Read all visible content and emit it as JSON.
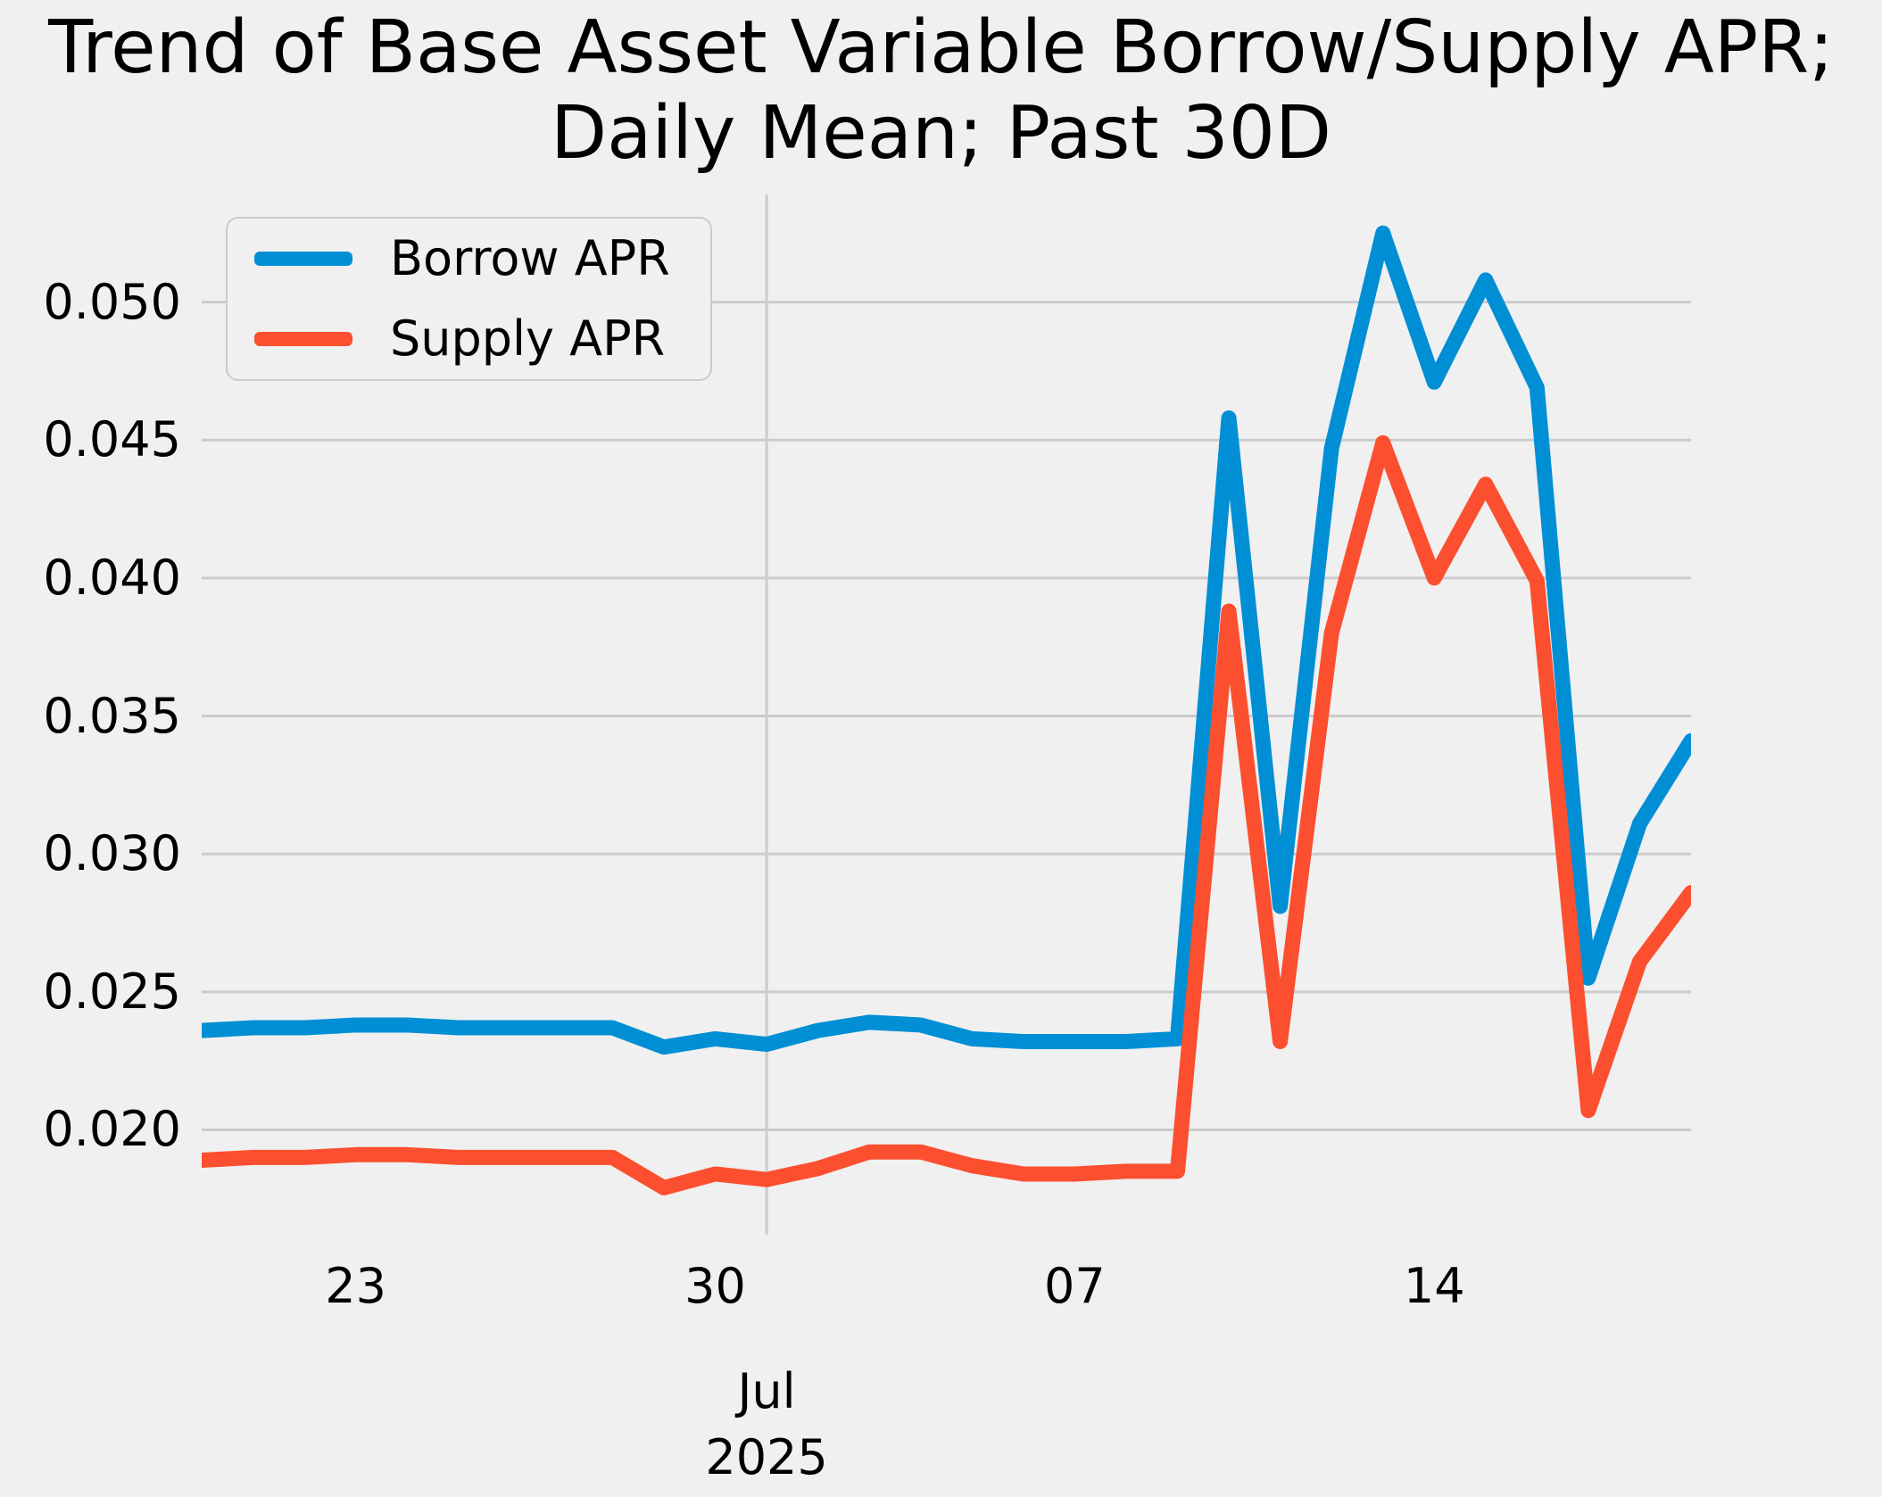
{
  "figure": {
    "background_color": "#f0f0f0",
    "grid_color": "#cbcbcb",
    "text_color": "#000000"
  },
  "chart_data": {
    "type": "line",
    "title": "Trend of Base Asset Variable Borrow/Supply APR; Daily Mean; Past 30D",
    "title_lines": [
      "Trend of Base Asset Variable Borrow/Supply APR;",
      "Daily Mean; Past 30D"
    ],
    "xlabel": "",
    "ylabel": "",
    "grid": true,
    "legend_position": "upper left",
    "x": [
      "2025-06-20",
      "2025-06-21",
      "2025-06-22",
      "2025-06-23",
      "2025-06-24",
      "2025-06-25",
      "2025-06-26",
      "2025-06-27",
      "2025-06-28",
      "2025-06-29",
      "2025-06-30",
      "2025-07-01",
      "2025-07-02",
      "2025-07-03",
      "2025-07-04",
      "2025-07-05",
      "2025-07-06",
      "2025-07-07",
      "2025-07-08",
      "2025-07-09",
      "2025-07-10",
      "2025-07-11",
      "2025-07-12",
      "2025-07-13",
      "2025-07-14",
      "2025-07-15",
      "2025-07-16",
      "2025-07-17",
      "2025-07-18",
      "2025-07-19"
    ],
    "series": [
      {
        "name": "Borrow APR",
        "color": "#008fd5",
        "values": [
          0.0236,
          0.0237,
          0.0237,
          0.0238,
          0.0238,
          0.0237,
          0.0237,
          0.0237,
          0.0237,
          0.023,
          0.0233,
          0.0231,
          0.0236,
          0.0239,
          0.0238,
          0.0233,
          0.0232,
          0.0232,
          0.0232,
          0.0233,
          0.0458,
          0.0281,
          0.0447,
          0.0525,
          0.0471,
          0.0508,
          0.0469,
          0.0255,
          0.0311,
          0.0341
        ]
      },
      {
        "name": "Supply APR",
        "color": "#fc4f30",
        "values": [
          0.0189,
          0.019,
          0.019,
          0.0191,
          0.0191,
          0.019,
          0.019,
          0.019,
          0.019,
          0.0179,
          0.0184,
          0.0182,
          0.0186,
          0.0192,
          0.0192,
          0.0187,
          0.0184,
          0.0184,
          0.0185,
          0.0185,
          0.0388,
          0.0232,
          0.038,
          0.0449,
          0.04,
          0.0434,
          0.0399,
          0.0207,
          0.0261,
          0.0286
        ]
      }
    ],
    "xlim": [
      "2025-06-20",
      "2025-07-19"
    ],
    "ylim": [
      0.0162,
      0.0539
    ],
    "yticks": [
      {
        "value": 0.05,
        "label": "0.050"
      },
      {
        "value": 0.045,
        "label": "0.045"
      },
      {
        "value": 0.04,
        "label": "0.040"
      },
      {
        "value": 0.035,
        "label": "0.035"
      },
      {
        "value": 0.03,
        "label": "0.030"
      },
      {
        "value": 0.025,
        "label": "0.025"
      },
      {
        "value": 0.02,
        "label": "0.020"
      }
    ],
    "xticks_minor": [
      {
        "date": "2025-06-23",
        "label": "23"
      },
      {
        "date": "2025-06-30",
        "label": "30"
      },
      {
        "date": "2025-07-07",
        "label": "07"
      },
      {
        "date": "2025-07-14",
        "label": "14"
      }
    ],
    "xticks_major": [
      {
        "date": "2025-07-01",
        "label": "Jul",
        "sublabel": "2025"
      }
    ]
  }
}
